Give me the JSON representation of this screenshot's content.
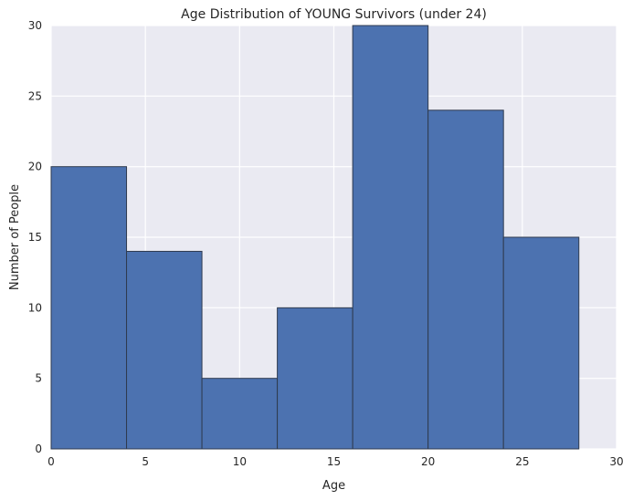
{
  "chart_data": {
    "type": "bar",
    "title": "Age Distribution of YOUNG Survivors (under 24)",
    "xlabel": "Age",
    "ylabel": "Number of People",
    "xlim": [
      0,
      30
    ],
    "ylim": [
      0,
      30
    ],
    "xticks": [
      0,
      5,
      10,
      15,
      20,
      25,
      30
    ],
    "yticks": [
      0,
      5,
      10,
      15,
      20,
      25,
      30
    ],
    "grid": true,
    "bins": [
      {
        "start": 0,
        "end": 4,
        "value": 20
      },
      {
        "start": 4,
        "end": 8,
        "value": 14
      },
      {
        "start": 8,
        "end": 12,
        "value": 5
      },
      {
        "start": 12,
        "end": 16,
        "value": 10
      },
      {
        "start": 16,
        "end": 20,
        "value": 30
      },
      {
        "start": 20,
        "end": 24,
        "value": 24
      },
      {
        "start": 24,
        "end": 28,
        "value": 15
      }
    ],
    "colors": {
      "bar": "#4C72B0",
      "bar_edge": "#2f3b4f",
      "plot_background": "#EAEAF2",
      "grid": "#ffffff"
    }
  }
}
